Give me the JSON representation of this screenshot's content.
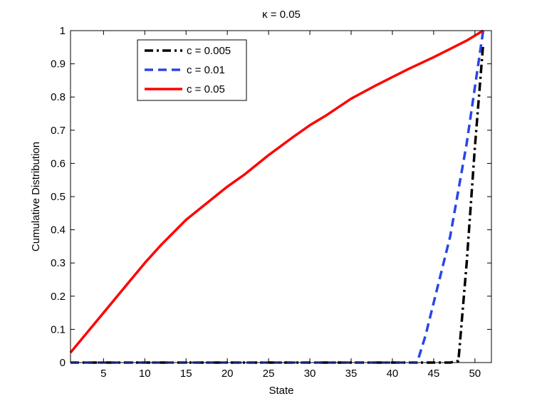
{
  "chart_data": {
    "type": "line",
    "title": "κ = 0.05",
    "xlabel": "State",
    "ylabel": "Cumulative Distribution",
    "xlim": [
      1,
      52
    ],
    "ylim": [
      0,
      1
    ],
    "xticks": [
      5,
      10,
      15,
      20,
      25,
      30,
      35,
      40,
      45,
      50
    ],
    "yticks": [
      0,
      0.1,
      0.2,
      0.3,
      0.4,
      0.5,
      0.6,
      0.7,
      0.8,
      0.9,
      1
    ],
    "ytick_labels": [
      "0",
      "0.1",
      "0.2",
      "0.3",
      "0.4",
      "0.5",
      "0.6",
      "0.7",
      "0.8",
      "0.9",
      "1"
    ],
    "grid": false,
    "legend_position": "top-left",
    "series": [
      {
        "name": "c = 0.005",
        "color": "#000000",
        "style": "dashdot",
        "x": [
          1,
          47,
          48,
          49,
          50,
          51
        ],
        "y": [
          0,
          0,
          0.005,
          0.3,
          0.65,
          0.96
        ]
      },
      {
        "name": "c = 0.01",
        "color": "#2846e6",
        "style": "dashed",
        "x": [
          1,
          43,
          44,
          45,
          46,
          47,
          48,
          49,
          50,
          51
        ],
        "y": [
          0,
          0,
          0.08,
          0.18,
          0.28,
          0.38,
          0.52,
          0.66,
          0.83,
          1.0
        ]
      },
      {
        "name": "c = 0.05",
        "color": "#ff0000",
        "style": "solid",
        "x": [
          1,
          3,
          5,
          8,
          10,
          12,
          15,
          18,
          20,
          22,
          25,
          28,
          30,
          32,
          35,
          38,
          40,
          42,
          45,
          47,
          49,
          51
        ],
        "y": [
          0.03,
          0.09,
          0.15,
          0.24,
          0.3,
          0.355,
          0.43,
          0.49,
          0.53,
          0.565,
          0.625,
          0.68,
          0.715,
          0.745,
          0.795,
          0.835,
          0.86,
          0.885,
          0.92,
          0.945,
          0.97,
          1.0
        ]
      }
    ]
  }
}
